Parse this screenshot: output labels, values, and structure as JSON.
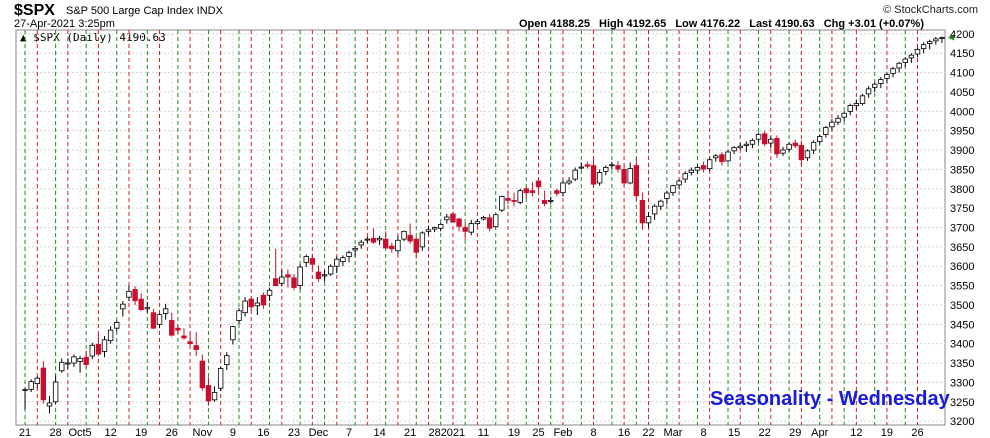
{
  "header": {
    "symbol": "$SPX",
    "name": "S&P 500 Large Cap Index  INDX",
    "date": "27-Apr-2021 3:25pm",
    "brand": "© StockCharts.com",
    "open_label": "Open 4188.25",
    "high_label": "High 4192.65",
    "low_label": "Low 4176.22",
    "last_label": "Last 4190.63",
    "chg_label": "Chg +3.01 (+0.07%)",
    "legend_symbol": "▲",
    "series_label": "$SPX (Daily) 4190.63"
  },
  "annotation": "Seasonality - Wednesday",
  "chart_data": {
    "type": "candlestick",
    "title": "$SPX S&P 500 Large Cap Index INDX",
    "ylim": [
      3190,
      4210
    ],
    "y_ticks": [
      3200,
      3250,
      3300,
      3350,
      3400,
      3450,
      3500,
      3550,
      3600,
      3650,
      3700,
      3750,
      3800,
      3850,
      3900,
      3950,
      4000,
      4050,
      4100,
      4150,
      4200
    ],
    "x_ticks": [
      {
        "i": 0,
        "label": "21"
      },
      {
        "i": 5,
        "label": "28"
      },
      {
        "i": 9,
        "label": "Oct5"
      },
      {
        "i": 14,
        "label": "12"
      },
      {
        "i": 19,
        "label": "19"
      },
      {
        "i": 24,
        "label": "26"
      },
      {
        "i": 29,
        "label": "Nov"
      },
      {
        "i": 34,
        "label": "9"
      },
      {
        "i": 39,
        "label": "16"
      },
      {
        "i": 44,
        "label": "23"
      },
      {
        "i": 48,
        "label": "Dec"
      },
      {
        "i": 53,
        "label": "7"
      },
      {
        "i": 58,
        "label": "14"
      },
      {
        "i": 63,
        "label": "21"
      },
      {
        "i": 67,
        "label": "28"
      },
      {
        "i": 70,
        "label": "2021"
      },
      {
        "i": 75,
        "label": "11"
      },
      {
        "i": 80,
        "label": "19"
      },
      {
        "i": 84,
        "label": "25"
      },
      {
        "i": 88,
        "label": "Feb"
      },
      {
        "i": 93,
        "label": "8"
      },
      {
        "i": 98,
        "label": "16"
      },
      {
        "i": 102,
        "label": "22"
      },
      {
        "i": 106,
        "label": "Mar"
      },
      {
        "i": 111,
        "label": "8"
      },
      {
        "i": 116,
        "label": "15"
      },
      {
        "i": 121,
        "label": "22"
      },
      {
        "i": 126,
        "label": "29"
      },
      {
        "i": 130,
        "label": "Apr"
      },
      {
        "i": 136,
        "label": "12"
      },
      {
        "i": 141,
        "label": "19"
      },
      {
        "i": 146,
        "label": "26"
      }
    ],
    "green_lines": [
      0,
      5,
      10,
      15,
      20,
      25,
      30,
      35,
      40,
      45,
      49,
      54,
      59,
      64,
      68,
      72,
      77,
      82,
      86,
      91,
      96,
      100,
      105,
      110,
      115,
      120,
      125,
      130,
      134,
      139,
      144
    ],
    "red_lines": [
      2,
      7,
      12,
      17,
      22,
      27,
      32,
      37,
      42,
      47,
      51,
      56,
      61,
      66,
      70,
      74,
      79,
      84,
      88,
      93,
      98,
      102,
      107,
      112,
      117,
      122,
      127,
      132,
      136,
      141,
      146
    ],
    "candles": [
      [
        3281,
        3286,
        3230,
        3282
      ],
      [
        3282,
        3308,
        3275,
        3302
      ],
      [
        3297,
        3316,
        3285,
        3311
      ],
      [
        3337,
        3355,
        3245,
        3255
      ],
      [
        3239,
        3265,
        3220,
        3247
      ],
      [
        3250,
        3318,
        3245,
        3301
      ],
      [
        3330,
        3362,
        3325,
        3352
      ],
      [
        3348,
        3362,
        3335,
        3350
      ],
      [
        3350,
        3372,
        3340,
        3366
      ],
      [
        3354,
        3368,
        3325,
        3362
      ],
      [
        3365,
        3382,
        3338,
        3346
      ],
      [
        3368,
        3402,
        3360,
        3396
      ],
      [
        3398,
        3425,
        3380,
        3373
      ],
      [
        3380,
        3420,
        3365,
        3410
      ],
      [
        3408,
        3445,
        3400,
        3435
      ],
      [
        3440,
        3460,
        3432,
        3455
      ],
      [
        3490,
        3510,
        3470,
        3502
      ],
      [
        3520,
        3550,
        3510,
        3535
      ],
      [
        3540,
        3548,
        3500,
        3511
      ],
      [
        3515,
        3530,
        3485,
        3488
      ],
      [
        3490,
        3508,
        3480,
        3493
      ],
      [
        3480,
        3490,
        3438,
        3440
      ],
      [
        3450,
        3478,
        3440,
        3475
      ],
      [
        3478,
        3503,
        3462,
        3490
      ],
      [
        3460,
        3480,
        3418,
        3422
      ],
      [
        3440,
        3450,
        3425,
        3435
      ],
      [
        3420,
        3440,
        3410,
        3415
      ],
      [
        3405,
        3432,
        3395,
        3400
      ],
      [
        3395,
        3430,
        3368,
        3385
      ],
      [
        3355,
        3372,
        3279,
        3286
      ],
      [
        3292,
        3313,
        3240,
        3252
      ],
      [
        3255,
        3290,
        3250,
        3274
      ],
      [
        3285,
        3340,
        3278,
        3336
      ],
      [
        3346,
        3378,
        3332,
        3369
      ],
      [
        3410,
        3446,
        3398,
        3444
      ],
      [
        3460,
        3492,
        3450,
        3485
      ],
      [
        3480,
        3520,
        3470,
        3510
      ],
      [
        3515,
        3520,
        3486,
        3495
      ],
      [
        3498,
        3520,
        3474,
        3505
      ],
      [
        3525,
        3532,
        3490,
        3500
      ],
      [
        3525,
        3545,
        3510,
        3538
      ],
      [
        3568,
        3645,
        3548,
        3550
      ],
      [
        3556,
        3590,
        3548,
        3572
      ],
      [
        3578,
        3592,
        3545,
        3572
      ],
      [
        3570,
        3580,
        3538,
        3545
      ],
      [
        3550,
        3605,
        3540,
        3598
      ],
      [
        3610,
        3630,
        3598,
        3625
      ],
      [
        3620,
        3632,
        3592,
        3605
      ],
      [
        3585,
        3602,
        3560,
        3568
      ],
      [
        3575,
        3590,
        3560,
        3578
      ],
      [
        3580,
        3605,
        3575,
        3600
      ],
      [
        3600,
        3625,
        3582,
        3618
      ],
      [
        3612,
        3628,
        3600,
        3622
      ],
      [
        3625,
        3640,
        3610,
        3635
      ],
      [
        3642,
        3652,
        3625,
        3646
      ],
      [
        3655,
        3668,
        3645,
        3662
      ],
      [
        3668,
        3676,
        3660,
        3670
      ],
      [
        3672,
        3698,
        3658,
        3662
      ],
      [
        3668,
        3678,
        3655,
        3672
      ],
      [
        3670,
        3690,
        3645,
        3647
      ],
      [
        3652,
        3660,
        3635,
        3645
      ],
      [
        3640,
        3678,
        3632,
        3667
      ],
      [
        3670,
        3692,
        3665,
        3690
      ],
      [
        3680,
        3710,
        3658,
        3665
      ],
      [
        3670,
        3675,
        3620,
        3636
      ],
      [
        3650,
        3690,
        3640,
        3686
      ],
      [
        3690,
        3705,
        3682,
        3694
      ],
      [
        3696,
        3702,
        3688,
        3700
      ],
      [
        3698,
        3712,
        3690,
        3708
      ],
      [
        3720,
        3735,
        3710,
        3727
      ],
      [
        3735,
        3740,
        3712,
        3714
      ],
      [
        3722,
        3725,
        3690,
        3703
      ],
      [
        3700,
        3712,
        3668,
        3690
      ],
      [
        3688,
        3720,
        3680,
        3710
      ],
      [
        3710,
        3722,
        3705,
        3715
      ],
      [
        3722,
        3730,
        3718,
        3726
      ],
      [
        3725,
        3735,
        3690,
        3698
      ],
      [
        3702,
        3735,
        3700,
        3733
      ],
      [
        3745,
        3782,
        3740,
        3780
      ],
      [
        3775,
        3796,
        3760,
        3770
      ],
      [
        3770,
        3790,
        3755,
        3768
      ],
      [
        3765,
        3800,
        3760,
        3795
      ],
      [
        3800,
        3806,
        3775,
        3790
      ],
      [
        3795,
        3818,
        3780,
        3790
      ],
      [
        3820,
        3830,
        3795,
        3805
      ],
      [
        3770,
        3795,
        3755,
        3762
      ],
      [
        3770,
        3780,
        3760,
        3770
      ],
      [
        3795,
        3800,
        3780,
        3788
      ],
      [
        3790,
        3822,
        3780,
        3815
      ],
      [
        3815,
        3830,
        3810,
        3820
      ],
      [
        3825,
        3855,
        3820,
        3848
      ],
      [
        3855,
        3868,
        3850,
        3856
      ],
      [
        3862,
        3870,
        3852,
        3858
      ],
      [
        3860,
        3878,
        3810,
        3812
      ],
      [
        3815,
        3850,
        3808,
        3842
      ],
      [
        3845,
        3860,
        3835,
        3855
      ],
      [
        3860,
        3870,
        3850,
        3862
      ],
      [
        3860,
        3872,
        3842,
        3851
      ],
      [
        3850,
        3858,
        3808,
        3815
      ],
      [
        3815,
        3868,
        3812,
        3852
      ],
      [
        3860,
        3880,
        3770,
        3782
      ],
      [
        3770,
        3790,
        3694,
        3712
      ],
      [
        3712,
        3740,
        3700,
        3728
      ],
      [
        3735,
        3760,
        3720,
        3755
      ],
      [
        3755,
        3772,
        3745,
        3768
      ],
      [
        3775,
        3795,
        3760,
        3789
      ],
      [
        3790,
        3810,
        3782,
        3808
      ],
      [
        3810,
        3825,
        3798,
        3820
      ],
      [
        3825,
        3845,
        3815,
        3839
      ],
      [
        3842,
        3855,
        3835,
        3848
      ],
      [
        3848,
        3862,
        3838,
        3855
      ],
      [
        3860,
        3870,
        3842,
        3851
      ],
      [
        3852,
        3880,
        3845,
        3875
      ],
      [
        3880,
        3890,
        3870,
        3885
      ],
      [
        3888,
        3895,
        3860,
        3870
      ],
      [
        3872,
        3900,
        3868,
        3895
      ],
      [
        3898,
        3910,
        3890,
        3906
      ],
      [
        3906,
        3918,
        3902,
        3910
      ],
      [
        3912,
        3922,
        3895,
        3915
      ],
      [
        3915,
        3930,
        3905,
        3925
      ],
      [
        3928,
        3945,
        3920,
        3940
      ],
      [
        3942,
        3950,
        3910,
        3916
      ],
      [
        3918,
        3935,
        3905,
        3928
      ],
      [
        3930,
        3938,
        3880,
        3890
      ],
      [
        3892,
        3908,
        3885,
        3900
      ],
      [
        3902,
        3920,
        3895,
        3915
      ],
      [
        3918,
        3926,
        3905,
        3911
      ],
      [
        3912,
        3925,
        3860,
        3875
      ],
      [
        3880,
        3902,
        3872,
        3898
      ],
      [
        3900,
        3925,
        3890,
        3920
      ],
      [
        3922,
        3940,
        3915,
        3935
      ],
      [
        3940,
        3962,
        3932,
        3958
      ],
      [
        3960,
        3980,
        3950,
        3972
      ],
      [
        3972,
        3990,
        3965,
        3982
      ],
      [
        3985,
        4000,
        3975,
        3995
      ],
      [
        4000,
        4020,
        3990,
        4015
      ],
      [
        4015,
        4030,
        4005,
        4020
      ],
      [
        4020,
        4045,
        4015,
        4040
      ],
      [
        4045,
        4065,
        4035,
        4058
      ],
      [
        4062,
        4075,
        4050,
        4070
      ],
      [
        4072,
        4088,
        4060,
        4082
      ],
      [
        4085,
        4100,
        4072,
        4095
      ],
      [
        4098,
        4115,
        4088,
        4110
      ],
      [
        4112,
        4128,
        4100,
        4124
      ],
      [
        4126,
        4140,
        4115,
        4135
      ],
      [
        4138,
        4150,
        4125,
        4145
      ],
      [
        4148,
        4165,
        4140,
        4160
      ],
      [
        4162,
        4178,
        4150,
        4172
      ],
      [
        4175,
        4185,
        4160,
        4180
      ],
      [
        4182,
        4192,
        4172,
        4187
      ],
      [
        4188.25,
        4192.65,
        4176.22,
        4190.63
      ]
    ]
  }
}
